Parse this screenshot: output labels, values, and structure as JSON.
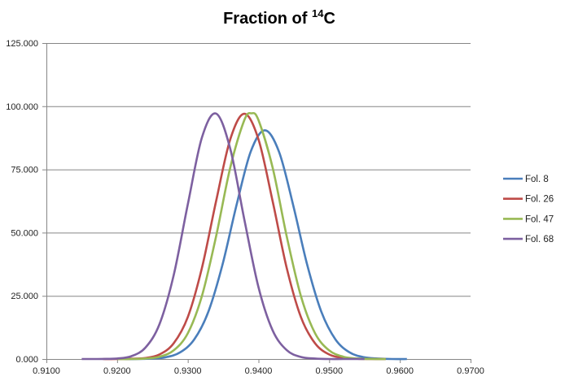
{
  "chart_data": {
    "type": "line",
    "title": {
      "main": "Fraction of ",
      "sup": "14",
      "tail": "C"
    },
    "xlabel": "",
    "ylabel": "",
    "xlim": [
      0.91,
      0.97
    ],
    "ylim": [
      0,
      125
    ],
    "x_ticks": [
      "0.9100",
      "0.9200",
      "0.9300",
      "0.9400",
      "0.9500",
      "0.9600",
      "0.9700"
    ],
    "y_ticks": [
      "0.000",
      "25.000",
      "50.000",
      "75.000",
      "100.000",
      "125.000"
    ],
    "grid": "horizontal",
    "legend_position": "right",
    "series": [
      {
        "name": "Fol. 8",
        "color": "#4A7EBB",
        "x": [
          0.921,
          0.9229,
          0.9249,
          0.9269,
          0.9289,
          0.9309,
          0.9329,
          0.9349,
          0.9369,
          0.9389,
          0.9409,
          0.9429,
          0.9449,
          0.9469,
          0.9489,
          0.9509,
          0.9529,
          0.9549,
          0.9569,
          0.9589,
          0.961
        ],
        "y": [
          0,
          0,
          0.2,
          0.7,
          2.6,
          7.7,
          18.6,
          37.2,
          61.0,
          82.0,
          90.5,
          82.0,
          61.0,
          37.2,
          18.6,
          7.7,
          2.6,
          0.7,
          0.2,
          0,
          0
        ]
      },
      {
        "name": "Fol. 26",
        "color": "#BE4B48",
        "x": [
          0.918,
          0.92,
          0.922,
          0.924,
          0.926,
          0.928,
          0.93,
          0.932,
          0.934,
          0.936,
          0.938,
          0.94,
          0.942,
          0.944,
          0.946,
          0.948,
          0.95,
          0.952,
          0.954,
          0.956,
          0.958
        ],
        "y": [
          0,
          0,
          0.1,
          0.4,
          1.8,
          6.2,
          16.6,
          36.0,
          62.4,
          86.9,
          97.0,
          86.9,
          62.4,
          36.0,
          16.6,
          6.2,
          1.8,
          0.4,
          0.1,
          0,
          0
        ]
      },
      {
        "name": "Fol. 47",
        "color": "#98B954",
        "x": [
          0.92,
          0.922,
          0.924,
          0.926,
          0.928,
          0.93,
          0.932,
          0.934,
          0.936,
          0.938,
          0.939,
          0.94,
          0.942,
          0.944,
          0.946,
          0.948,
          0.95,
          0.952,
          0.954,
          0.956,
          0.958
        ],
        "y": [
          0,
          0,
          0.2,
          0.9,
          3.4,
          10.2,
          24.9,
          48.5,
          75.7,
          94.5,
          97.2,
          94.5,
          75.7,
          48.5,
          24.9,
          10.2,
          3.4,
          0.9,
          0.2,
          0,
          0
        ]
      },
      {
        "name": "Fol. 68",
        "color": "#7D60A0",
        "x": [
          0.915,
          0.916,
          0.918,
          0.92,
          0.922,
          0.924,
          0.926,
          0.928,
          0.93,
          0.932,
          0.934,
          0.936,
          0.938,
          0.94,
          0.942,
          0.944,
          0.946,
          0.948,
          0.95,
          0.952,
          0.955
        ],
        "y": [
          0,
          0,
          0.03,
          0.2,
          1.1,
          4.5,
          13.8,
          33.1,
          61.2,
          87.6,
          97.1,
          83.2,
          55.2,
          28.4,
          11.3,
          3.5,
          0.8,
          0.2,
          0,
          0,
          0
        ]
      }
    ]
  }
}
